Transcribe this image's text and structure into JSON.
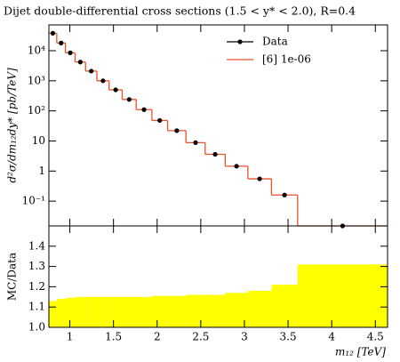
{
  "chart_data": {
    "type": "step",
    "title": "Dijet double-differential cross sections (1.5 < y* < 2.0), R=0.4",
    "ylabel": "d²σ/dm₁₂dy* [pb/TeV]",
    "xlabel": "m₁₂ [TeV]",
    "bins": [
      0.76,
      0.85,
      0.95,
      1.06,
      1.18,
      1.31,
      1.45,
      1.6,
      1.76,
      1.94,
      2.12,
      2.33,
      2.55,
      2.78,
      3.04,
      3.31,
      3.61,
      4.64
    ],
    "x": [
      0.805,
      0.9,
      1.005,
      1.12,
      1.245,
      1.38,
      1.525,
      1.68,
      1.85,
      2.03,
      2.225,
      2.44,
      2.665,
      2.91,
      3.175,
      3.46,
      4.125
    ],
    "series": [
      {
        "name": "Data",
        "color": "#000000",
        "values": [
          38000,
          18000,
          8500,
          4200,
          2100,
          1000,
          500,
          240,
          110,
          48,
          22,
          8.8,
          3.6,
          1.45,
          0.55,
          0.16,
          0.015
        ]
      },
      {
        "name": "[6] 1e-06",
        "color": "#e8512a",
        "values": [
          38000,
          18000,
          8500,
          4200,
          2100,
          1000,
          500,
          240,
          110,
          48,
          22,
          8.8,
          3.6,
          1.45,
          0.55,
          0.16,
          0.015
        ]
      }
    ],
    "xlim": [
      0.76,
      4.64
    ],
    "xticks": [
      1,
      1.5,
      2,
      2.5,
      3,
      3.5,
      4,
      4.5
    ],
    "ylim": [
      0.015,
      72000
    ],
    "log_y": true,
    "yticks": [
      {
        "value": 0.1,
        "label": "10⁻¹"
      },
      1,
      10,
      {
        "value": 100,
        "label": "10²"
      },
      {
        "value": 1000,
        "label": "10³"
      },
      {
        "value": 10000,
        "label": "10⁴"
      }
    ],
    "legend": "upper right",
    "ratio": {
      "ylabel": "MC/Data",
      "color": "#ffff00",
      "values": [
        1.13,
        1.14,
        1.145,
        1.15,
        1.15,
        1.15,
        1.15,
        1.15,
        1.15,
        1.155,
        1.155,
        1.16,
        1.16,
        1.17,
        1.18,
        1.21,
        1.31
      ],
      "ylim": [
        1.0,
        1.5
      ],
      "yticks": [
        {
          "value": 1.0,
          "label": "1.0"
        },
        1.1,
        1.2,
        1.3,
        1.4
      ]
    }
  }
}
